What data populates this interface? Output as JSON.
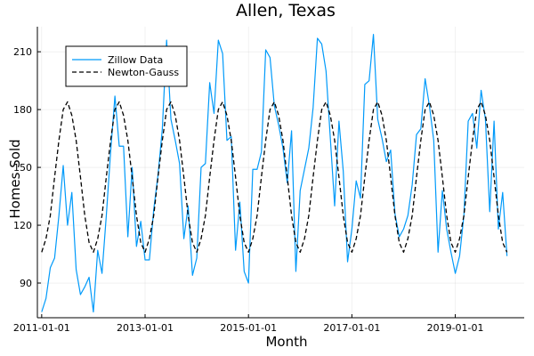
{
  "chart_data": {
    "type": "line",
    "title": "Allen, Texas",
    "xlabel": "Month",
    "ylabel": "Homes Sold",
    "x_ticks": [
      "2011-01-01",
      "2013-01-01",
      "2015-01-01",
      "2017-01-01",
      "2019-01-01"
    ],
    "y_ticks": [
      90,
      120,
      150,
      180,
      210
    ],
    "xlim": [
      "2010-12-01",
      "2020-05-01"
    ],
    "ylim": [
      72,
      223
    ],
    "grid": true,
    "legend_position": "top-left",
    "series": [
      {
        "name": "Zillow Data",
        "color": "#009AFA",
        "style": "solid",
        "points": [
          [
            "2011-01-01",
            75
          ],
          [
            "2011-02-01",
            82
          ],
          [
            "2011-03-01",
            98
          ],
          [
            "2011-04-01",
            103
          ],
          [
            "2011-05-01",
            125
          ],
          [
            "2011-06-01",
            151
          ],
          [
            "2011-07-01",
            120
          ],
          [
            "2011-08-01",
            137
          ],
          [
            "2011-09-01",
            97
          ],
          [
            "2011-10-01",
            84
          ],
          [
            "2011-11-01",
            88
          ],
          [
            "2011-12-01",
            93
          ],
          [
            "2012-01-01",
            75
          ],
          [
            "2012-02-01",
            107
          ],
          [
            "2012-03-01",
            95
          ],
          [
            "2012-04-01",
            125
          ],
          [
            "2012-05-01",
            158
          ],
          [
            "2012-06-01",
            187
          ],
          [
            "2012-07-01",
            161
          ],
          [
            "2012-08-01",
            161
          ],
          [
            "2012-09-01",
            114
          ],
          [
            "2012-10-01",
            150
          ],
          [
            "2012-11-01",
            109
          ],
          [
            "2012-12-01",
            122
          ],
          [
            "2013-01-01",
            102
          ],
          [
            "2013-02-01",
            102
          ],
          [
            "2013-03-01",
            128
          ],
          [
            "2013-04-01",
            146
          ],
          [
            "2013-05-01",
            170
          ],
          [
            "2013-06-01",
            216
          ],
          [
            "2013-07-01",
            175
          ],
          [
            "2013-08-01",
            164
          ],
          [
            "2013-09-01",
            152
          ],
          [
            "2013-10-01",
            113
          ],
          [
            "2013-11-01",
            130
          ],
          [
            "2013-12-01",
            94
          ],
          [
            "2014-01-01",
            103
          ],
          [
            "2014-02-01",
            150
          ],
          [
            "2014-03-01",
            152
          ],
          [
            "2014-04-01",
            194
          ],
          [
            "2014-05-01",
            178
          ],
          [
            "2014-06-01",
            216
          ],
          [
            "2014-07-01",
            209
          ],
          [
            "2014-08-01",
            164
          ],
          [
            "2014-09-01",
            166
          ],
          [
            "2014-10-01",
            107
          ],
          [
            "2014-11-01",
            132
          ],
          [
            "2014-12-01",
            96
          ],
          [
            "2015-01-01",
            90
          ],
          [
            "2015-02-01",
            149
          ],
          [
            "2015-03-01",
            149
          ],
          [
            "2015-04-01",
            158
          ],
          [
            "2015-05-01",
            211
          ],
          [
            "2015-06-01",
            207
          ],
          [
            "2015-07-01",
            182
          ],
          [
            "2015-08-01",
            172
          ],
          [
            "2015-09-01",
            160
          ],
          [
            "2015-10-01",
            142
          ],
          [
            "2015-11-01",
            169
          ],
          [
            "2015-12-01",
            96
          ],
          [
            "2016-01-01",
            138
          ],
          [
            "2016-02-01",
            149
          ],
          [
            "2016-03-01",
            160
          ],
          [
            "2016-04-01",
            181
          ],
          [
            "2016-05-01",
            217
          ],
          [
            "2016-06-01",
            214
          ],
          [
            "2016-07-01",
            200
          ],
          [
            "2016-08-01",
            165
          ],
          [
            "2016-09-01",
            130
          ],
          [
            "2016-10-01",
            174
          ],
          [
            "2016-11-01",
            148
          ],
          [
            "2016-12-01",
            101
          ],
          [
            "2017-01-01",
            118
          ],
          [
            "2017-02-01",
            143
          ],
          [
            "2017-03-01",
            134
          ],
          [
            "2017-04-01",
            193
          ],
          [
            "2017-05-01",
            195
          ],
          [
            "2017-06-01",
            219
          ],
          [
            "2017-07-01",
            175
          ],
          [
            "2017-08-01",
            165
          ],
          [
            "2017-09-01",
            153
          ],
          [
            "2017-10-01",
            159
          ],
          [
            "2017-11-01",
            126
          ],
          [
            "2017-12-01",
            114
          ],
          [
            "2018-01-01",
            118
          ],
          [
            "2018-02-01",
            125
          ],
          [
            "2018-03-01",
            141
          ],
          [
            "2018-04-01",
            167
          ],
          [
            "2018-05-01",
            170
          ],
          [
            "2018-06-01",
            196
          ],
          [
            "2018-07-01",
            182
          ],
          [
            "2018-08-01",
            164
          ],
          [
            "2018-09-01",
            106
          ],
          [
            "2018-10-01",
            138
          ],
          [
            "2018-11-01",
            118
          ],
          [
            "2018-12-01",
            106
          ],
          [
            "2019-01-01",
            95
          ],
          [
            "2019-02-01",
            104
          ],
          [
            "2019-03-01",
            125
          ],
          [
            "2019-04-01",
            174
          ],
          [
            "2019-05-01",
            178
          ],
          [
            "2019-06-01",
            160
          ],
          [
            "2019-07-01",
            190
          ],
          [
            "2019-08-01",
            175
          ],
          [
            "2019-09-01",
            127
          ],
          [
            "2019-10-01",
            174
          ],
          [
            "2019-11-01",
            118
          ],
          [
            "2019-12-01",
            137
          ],
          [
            "2020-01-01",
            104
          ]
        ]
      },
      {
        "name": "Newton-Gauss",
        "color": "#000000",
        "style": "dashed",
        "model": "sinusoid fit, period 12 months, peak near 184 and trough near 106 homes",
        "points": [
          [
            "2011-01-01",
            106
          ],
          [
            "2011-02-01",
            113
          ],
          [
            "2011-03-01",
            125
          ],
          [
            "2011-04-01",
            145
          ],
          [
            "2011-05-01",
            164
          ],
          [
            "2011-06-01",
            180
          ],
          [
            "2011-07-01",
            184
          ],
          [
            "2011-08-01",
            177
          ],
          [
            "2011-09-01",
            164
          ],
          [
            "2011-10-01",
            145
          ],
          [
            "2011-11-01",
            125
          ],
          [
            "2011-12-01",
            111
          ],
          [
            "2012-01-01",
            106
          ],
          [
            "2012-02-01",
            113
          ],
          [
            "2012-03-01",
            125
          ],
          [
            "2012-04-01",
            145
          ],
          [
            "2012-05-01",
            164
          ],
          [
            "2012-06-01",
            180
          ],
          [
            "2012-07-01",
            184
          ],
          [
            "2012-08-01",
            177
          ],
          [
            "2012-09-01",
            164
          ],
          [
            "2012-10-01",
            145
          ],
          [
            "2012-11-01",
            125
          ],
          [
            "2012-12-01",
            111
          ],
          [
            "2013-01-01",
            106
          ],
          [
            "2013-02-01",
            113
          ],
          [
            "2013-03-01",
            125
          ],
          [
            "2013-04-01",
            145
          ],
          [
            "2013-05-01",
            164
          ],
          [
            "2013-06-01",
            180
          ],
          [
            "2013-07-01",
            184
          ],
          [
            "2013-08-01",
            177
          ],
          [
            "2013-09-01",
            164
          ],
          [
            "2013-10-01",
            145
          ],
          [
            "2013-11-01",
            125
          ],
          [
            "2013-12-01",
            111
          ],
          [
            "2014-01-01",
            106
          ],
          [
            "2014-02-01",
            113
          ],
          [
            "2014-03-01",
            125
          ],
          [
            "2014-04-01",
            145
          ],
          [
            "2014-05-01",
            164
          ],
          [
            "2014-06-01",
            180
          ],
          [
            "2014-07-01",
            184
          ],
          [
            "2014-08-01",
            177
          ],
          [
            "2014-09-01",
            164
          ],
          [
            "2014-10-01",
            145
          ],
          [
            "2014-11-01",
            125
          ],
          [
            "2014-12-01",
            111
          ],
          [
            "2015-01-01",
            106
          ],
          [
            "2015-02-01",
            113
          ],
          [
            "2015-03-01",
            125
          ],
          [
            "2015-04-01",
            145
          ],
          [
            "2015-05-01",
            164
          ],
          [
            "2015-06-01",
            180
          ],
          [
            "2015-07-01",
            184
          ],
          [
            "2015-08-01",
            177
          ],
          [
            "2015-09-01",
            164
          ],
          [
            "2015-10-01",
            145
          ],
          [
            "2015-11-01",
            125
          ],
          [
            "2015-12-01",
            111
          ],
          [
            "2016-01-01",
            106
          ],
          [
            "2016-02-01",
            113
          ],
          [
            "2016-03-01",
            125
          ],
          [
            "2016-04-01",
            145
          ],
          [
            "2016-05-01",
            164
          ],
          [
            "2016-06-01",
            180
          ],
          [
            "2016-07-01",
            184
          ],
          [
            "2016-08-01",
            177
          ],
          [
            "2016-09-01",
            164
          ],
          [
            "2016-10-01",
            145
          ],
          [
            "2016-11-01",
            125
          ],
          [
            "2016-12-01",
            111
          ],
          [
            "2017-01-01",
            106
          ],
          [
            "2017-02-01",
            113
          ],
          [
            "2017-03-01",
            125
          ],
          [
            "2017-04-01",
            145
          ],
          [
            "2017-05-01",
            164
          ],
          [
            "2017-06-01",
            180
          ],
          [
            "2017-07-01",
            184
          ],
          [
            "2017-08-01",
            177
          ],
          [
            "2017-09-01",
            164
          ],
          [
            "2017-10-01",
            145
          ],
          [
            "2017-11-01",
            125
          ],
          [
            "2017-12-01",
            111
          ],
          [
            "2018-01-01",
            106
          ],
          [
            "2018-02-01",
            113
          ],
          [
            "2018-03-01",
            125
          ],
          [
            "2018-04-01",
            145
          ],
          [
            "2018-05-01",
            164
          ],
          [
            "2018-06-01",
            180
          ],
          [
            "2018-07-01",
            184
          ],
          [
            "2018-08-01",
            177
          ],
          [
            "2018-09-01",
            164
          ],
          [
            "2018-10-01",
            145
          ],
          [
            "2018-11-01",
            125
          ],
          [
            "2018-12-01",
            111
          ],
          [
            "2019-01-01",
            106
          ],
          [
            "2019-02-01",
            113
          ],
          [
            "2019-03-01",
            125
          ],
          [
            "2019-04-01",
            145
          ],
          [
            "2019-05-01",
            164
          ],
          [
            "2019-06-01",
            180
          ],
          [
            "2019-07-01",
            184
          ],
          [
            "2019-08-01",
            177
          ],
          [
            "2019-09-01",
            164
          ],
          [
            "2019-10-01",
            145
          ],
          [
            "2019-11-01",
            125
          ],
          [
            "2019-12-01",
            111
          ],
          [
            "2020-01-01",
            106
          ]
        ]
      }
    ]
  }
}
